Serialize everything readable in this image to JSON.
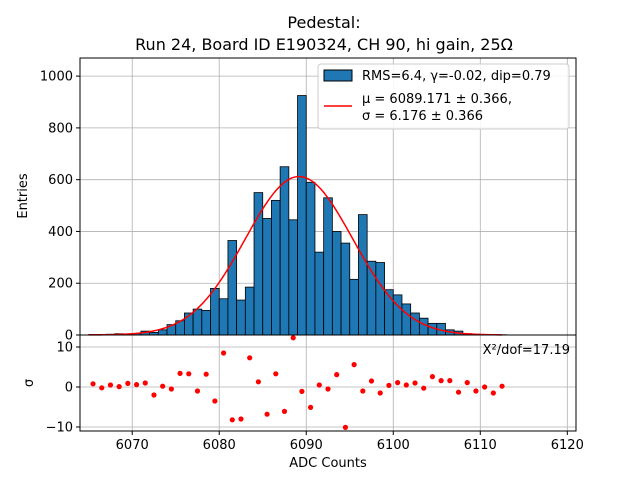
{
  "chart_data": [
    {
      "type": "bar",
      "title_line1": "Pedestal:",
      "title_line2": "Run 24, Board ID E190324, CH 90, hi gain, 25Ω",
      "xlabel": "",
      "ylabel": "Entries",
      "xlim": [
        6064,
        6121
      ],
      "ylim": [
        0,
        1070
      ],
      "yticks": [
        0,
        200,
        400,
        600,
        800,
        1000
      ],
      "grid": true,
      "legend_position": "top-right",
      "legend": {
        "hist_label": "RMS=6.4, γ=-0.02, dip=0.79",
        "fit_label_1": "μ = 6089.171 ± 0.366,",
        "fit_label_2": "σ = 6.176 ± 0.366"
      },
      "bins": {
        "width": 1,
        "x": [
          6065,
          6066,
          6067,
          6068,
          6069,
          6070,
          6071,
          6072,
          6073,
          6074,
          6075,
          6076,
          6077,
          6078,
          6079,
          6080,
          6081,
          6082,
          6083,
          6084,
          6085,
          6086,
          6087,
          6088,
          6089,
          6090,
          6091,
          6092,
          6093,
          6094,
          6095,
          6096,
          6097,
          6098,
          6099,
          6100,
          6101,
          6102,
          6103,
          6104,
          6105,
          6106,
          6107,
          6108,
          6109,
          6110,
          6111,
          6112
        ],
        "values": [
          2,
          2,
          3,
          5,
          4,
          6,
          15,
          10,
          20,
          40,
          55,
          85,
          100,
          95,
          180,
          140,
          365,
          135,
          185,
          550,
          450,
          520,
          650,
          445,
          925,
          590,
          320,
          530,
          400,
          355,
          215,
          465,
          285,
          280,
          175,
          155,
          120,
          85,
          65,
          45,
          45,
          20,
          15,
          5,
          3,
          2,
          1,
          1
        ]
      },
      "fit": {
        "name": "Gaussian fit",
        "color": "#ff0000",
        "mu": 6089.171,
        "sigma": 6.176,
        "amplitude": 612,
        "x_range": [
          6065,
          6112.5
        ]
      },
      "colors": {
        "bar_fill": "#1f77b4",
        "bar_edge": "#000000"
      }
    },
    {
      "type": "scatter",
      "xlabel": "ADC Counts",
      "ylabel": "σ",
      "xlim": [
        6064,
        6121
      ],
      "ylim": [
        -11,
        13
      ],
      "xticks": [
        6070,
        6080,
        6090,
        6100,
        6110,
        6120
      ],
      "yticks": [
        -10,
        0,
        10
      ],
      "grid": true,
      "annotation": "X²/dof=17.19",
      "color": "#ff0000",
      "x": [
        6065.5,
        6066.5,
        6067.5,
        6068.5,
        6069.5,
        6070.5,
        6071.5,
        6072.5,
        6073.5,
        6074.5,
        6075.5,
        6076.5,
        6077.5,
        6078.5,
        6079.5,
        6080.5,
        6081.5,
        6082.5,
        6083.5,
        6084.5,
        6085.5,
        6086.5,
        6087.5,
        6088.5,
        6089.5,
        6090.5,
        6091.5,
        6092.5,
        6093.5,
        6094.5,
        6095.5,
        6096.5,
        6097.5,
        6098.5,
        6099.5,
        6100.5,
        6101.5,
        6102.5,
        6103.5,
        6104.5,
        6105.5,
        6106.5,
        6107.5,
        6108.5,
        6109.5,
        6110.5,
        6111.5,
        6112.5
      ],
      "y": [
        0.8,
        -0.2,
        0.5,
        0.1,
        0.9,
        0.6,
        1.0,
        -2.0,
        0.2,
        -0.5,
        3.4,
        3.3,
        -1.0,
        3.2,
        -3.5,
        8.5,
        -8.2,
        -8.0,
        7.3,
        1.3,
        -6.8,
        3.3,
        -6.1,
        12.3,
        -1.1,
        -5.1,
        0.5,
        -0.5,
        3.1,
        -10.1,
        5.6,
        -1.0,
        1.5,
        -1.5,
        0.4,
        1.1,
        0.5,
        1.0,
        -0.3,
        2.6,
        1.6,
        1.6,
        -1.3,
        1.1,
        -1.0,
        0.0,
        -1.5,
        0.2
      ]
    }
  ]
}
